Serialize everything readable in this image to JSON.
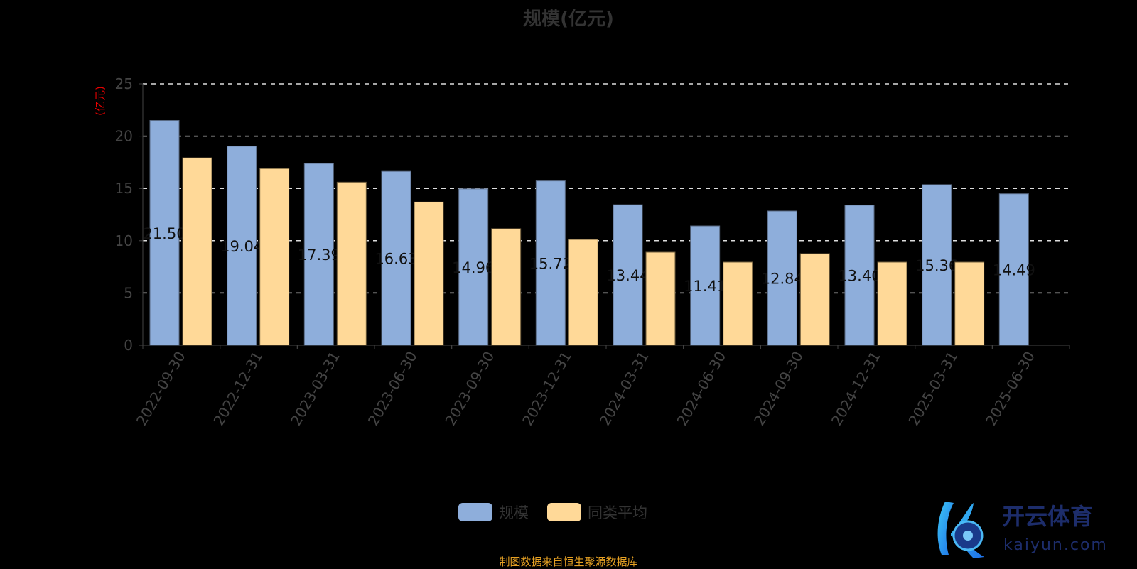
{
  "chart_data": {
    "type": "bar",
    "title": "规模(亿元)",
    "ylabel": "(亿元)",
    "xlabel": "",
    "ylim": [
      0,
      25
    ],
    "yticks": [
      0,
      5,
      10,
      15,
      20,
      25
    ],
    "grid": true,
    "legend_position": "bottom",
    "categories": [
      "2022-09-30",
      "2022-12-31",
      "2023-03-31",
      "2023-06-30",
      "2023-09-30",
      "2023-12-31",
      "2024-03-31",
      "2024-06-30",
      "2024-09-30",
      "2024-12-31",
      "2025-03-31",
      "2025-06-30"
    ],
    "series": [
      {
        "name": "规模",
        "color": "#8eaedb",
        "values": [
          21.5,
          19.04,
          17.39,
          16.63,
          14.96,
          15.72,
          13.44,
          11.41,
          12.84,
          13.4,
          15.36,
          14.49
        ],
        "labels": [
          "21.50",
          "19.04",
          "17.39",
          "16.63",
          "14.96",
          "15.72",
          "13.44",
          "11.41",
          "12.84",
          "13.40",
          "15.36",
          "14.49"
        ]
      },
      {
        "name": "同类平均",
        "color": "#ffd998",
        "values": [
          17.93,
          16.9,
          15.6,
          13.7,
          11.15,
          10.12,
          8.9,
          7.95,
          8.76,
          7.95,
          7.95,
          null
        ]
      }
    ]
  },
  "footer": "制图数据来自恒生聚源数据库",
  "logo": {
    "brand": "开云体育",
    "url_text": "kaiyun.com"
  }
}
